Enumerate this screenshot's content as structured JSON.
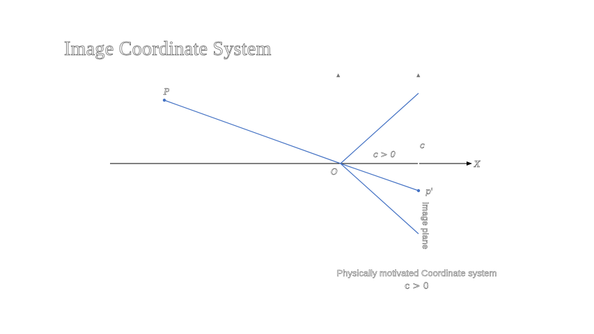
{
  "slide": {
    "title": "Image Coordinate System",
    "caption": "Physically motivated Coordinate system",
    "caption_condition": "c > 0"
  },
  "diagram": {
    "point_labels": {
      "scene_point": "P",
      "image_point": "p'",
      "origin": "O",
      "axis": "X",
      "intercept": "c"
    },
    "focal_condition": "c > 0",
    "image_plane_label": "Image plane",
    "colors": {
      "ray": "#4472c4",
      "axis": "#000000",
      "text_fill": "#ffffff",
      "text_outline": "#555555"
    }
  }
}
